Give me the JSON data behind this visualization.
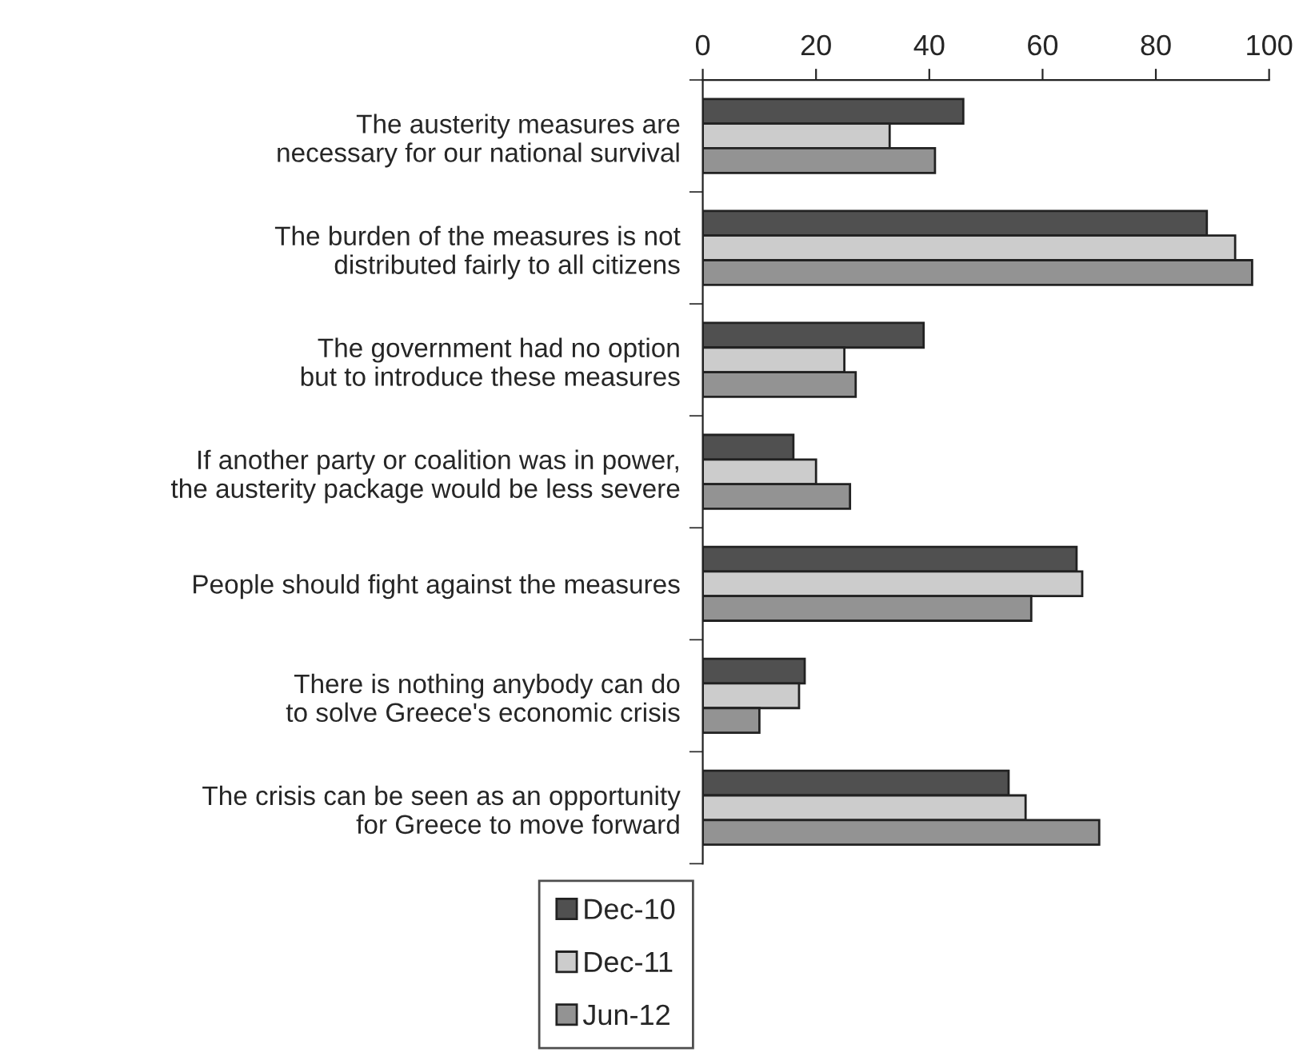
{
  "chart_data": {
    "type": "bar",
    "orientation": "horizontal",
    "categories": [
      "The austerity measures are\nnecessary for our national survival",
      "The burden of the measures is not\ndistributed fairly to all citizens",
      "The government had no option\nbut to introduce these measures",
      "If another party or coalition was in power,\nthe austerity package would be less severe",
      "People should fight against the measures",
      "There is nothing anybody can do\nto solve Greece's economic crisis",
      "The crisis can be seen as an opportunity\nfor Greece to move forward"
    ],
    "series": [
      {
        "name": "Dec-10",
        "color": "#505050",
        "values": [
          46,
          89,
          39,
          16,
          66,
          18,
          54
        ]
      },
      {
        "name": "Dec-11",
        "color": "#cccccc",
        "values": [
          33,
          94,
          25,
          20,
          67,
          17,
          57
        ]
      },
      {
        "name": "Jun-12",
        "color": "#939393",
        "values": [
          41,
          97,
          27,
          26,
          58,
          10,
          70
        ]
      }
    ],
    "xlim": [
      0,
      100
    ],
    "xticks": [
      0,
      20,
      40,
      60,
      80,
      100
    ],
    "grid": false,
    "legend": "bottom"
  }
}
